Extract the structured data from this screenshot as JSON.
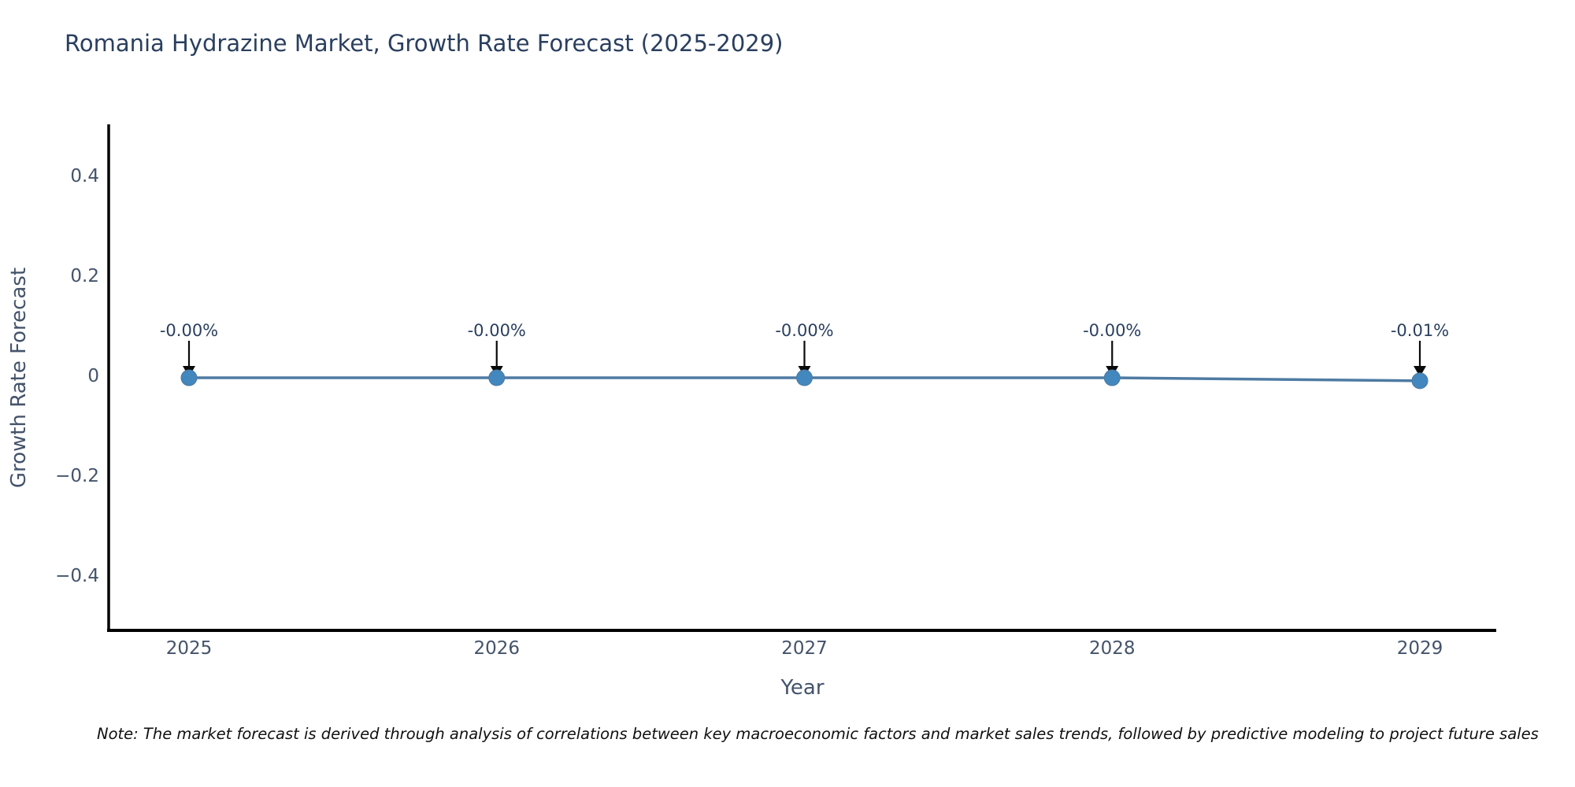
{
  "title": "Romania Hydrazine Market, Growth Rate Forecast (2025-2029)",
  "chart_data": {
    "type": "line",
    "x": [
      "2025",
      "2026",
      "2027",
      "2028",
      "2029"
    ],
    "values": [
      -0.004,
      -0.004,
      -0.004,
      -0.004,
      -0.01
    ],
    "point_labels": [
      "-0.00%",
      "-0.00%",
      "-0.00%",
      "-0.00%",
      "-0.01%"
    ],
    "title": "Romania Hydrazine Market, Growth Rate Forecast (2025-2029)",
    "xlabel": "Year",
    "ylabel": "Growth Rate Forecast",
    "yticks": [
      0.4,
      0.2,
      0,
      -0.2,
      -0.4
    ],
    "ytick_labels": [
      "0.4",
      "0.2",
      "0",
      "−0.2",
      "−0.4"
    ],
    "ylim": [
      -0.5,
      0.5
    ],
    "grid": false,
    "legend": false,
    "line_color": "#4e7ba3",
    "marker_color": "#4287bd",
    "axis_color": "#000000",
    "arrow_color": "#0a0a0a"
  },
  "note": "Note: The market forecast is derived through analysis of correlations between key macroeconomic factors and market sales trends, followed by predictive modeling to project future sales"
}
